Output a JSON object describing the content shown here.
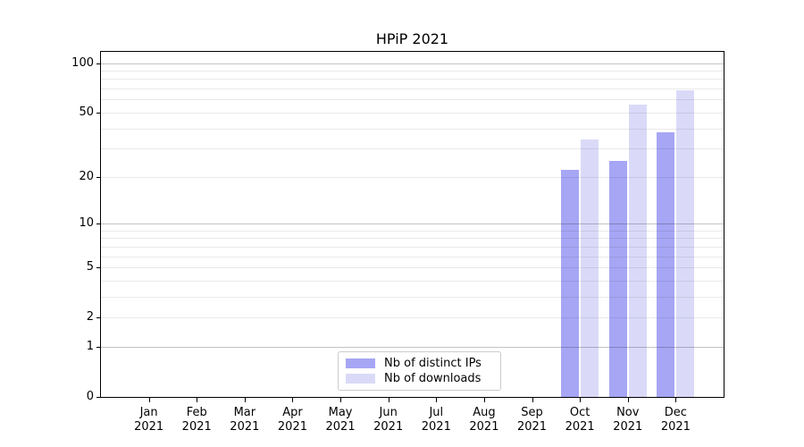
{
  "title": "HPiP 2021",
  "chart_data": {
    "type": "bar",
    "title": "HPiP 2021",
    "categories": [
      "Jan",
      "Feb",
      "Mar",
      "Apr",
      "May",
      "Jun",
      "Jul",
      "Aug",
      "Sep",
      "Oct",
      "Nov",
      "Dec"
    ],
    "category_year": "2021",
    "series": [
      {
        "name": "Nb of distinct IPs",
        "color": "#a6a6f5",
        "values": [
          0,
          0,
          0,
          0,
          0,
          0,
          0,
          0,
          0,
          22,
          25,
          38
        ]
      },
      {
        "name": "Nb of downloads",
        "color": "#dadaf8",
        "values": [
          0,
          0,
          0,
          0,
          0,
          0,
          0,
          0,
          0,
          34,
          56,
          68
        ]
      }
    ],
    "xlabel": "",
    "ylabel": "",
    "yscale": "log1p",
    "ylim": [
      0,
      117
    ],
    "yticks": [
      100,
      50,
      20,
      10,
      5,
      2,
      1,
      0
    ],
    "grid_major_values": [
      1,
      10,
      100
    ],
    "grid_minor_values": [
      2,
      3,
      4,
      5,
      6,
      7,
      8,
      9,
      20,
      30,
      40,
      50,
      60,
      70,
      80,
      90
    ],
    "grid_major_color": "#c4c4c4",
    "grid_minor_color": "#eaeaea",
    "legend_position": "lower center",
    "axis_color": "#000000",
    "background_color": "#ffffff"
  }
}
